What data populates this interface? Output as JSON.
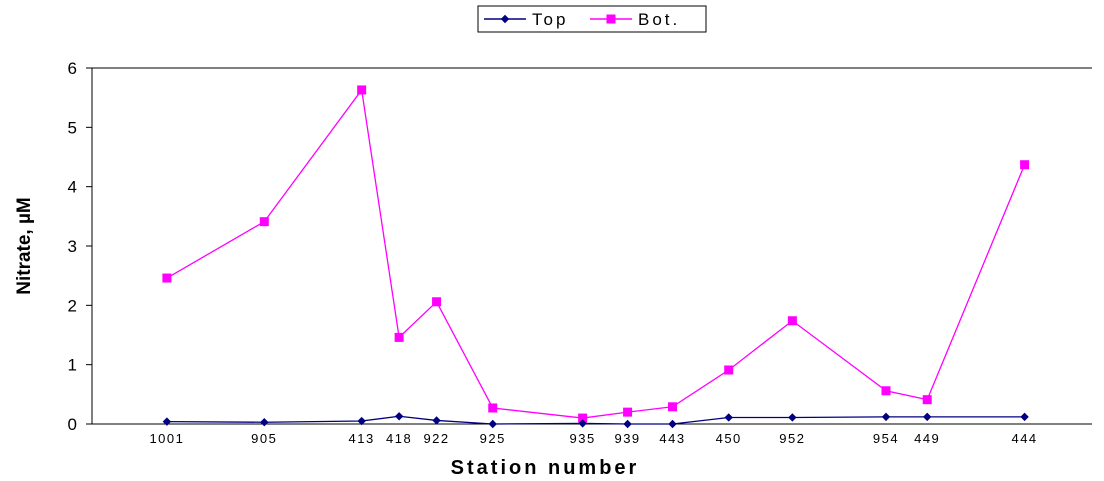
{
  "chart_data": {
    "type": "line",
    "categories": [
      "1001",
      "905",
      "413",
      "418",
      "922",
      "925",
      "935",
      "939",
      "443",
      "450",
      "952",
      "954",
      "449",
      "444"
    ],
    "x": [
      1,
      2.3,
      3.6,
      4.1,
      4.6,
      5.35,
      6.55,
      7.15,
      7.75,
      8.5,
      9.35,
      10.6,
      11.15,
      12.45
    ],
    "series": [
      {
        "name": "Top",
        "color": "#000080",
        "marker": "diamond",
        "values": [
          0.04,
          0.03,
          0.05,
          0.13,
          0.06,
          0.0,
          0.01,
          0.0,
          0.0,
          0.11,
          0.11,
          0.12,
          0.12,
          0.12
        ]
      },
      {
        "name": "Bot.",
        "color": "#ff00ff",
        "marker": "square",
        "values": [
          2.46,
          3.41,
          5.63,
          1.46,
          2.06,
          0.27,
          0.1,
          0.2,
          0.29,
          0.91,
          1.74,
          0.56,
          0.41,
          4.37
        ]
      }
    ],
    "title": "",
    "xlabel": "Station number",
    "ylabel": "Nitrate, µM",
    "ylim": [
      0,
      6
    ],
    "yticks": [
      "0",
      "1",
      "2",
      "3",
      "4",
      "5",
      "6"
    ],
    "grid": "horizontal",
    "legend_position": "top-center"
  }
}
